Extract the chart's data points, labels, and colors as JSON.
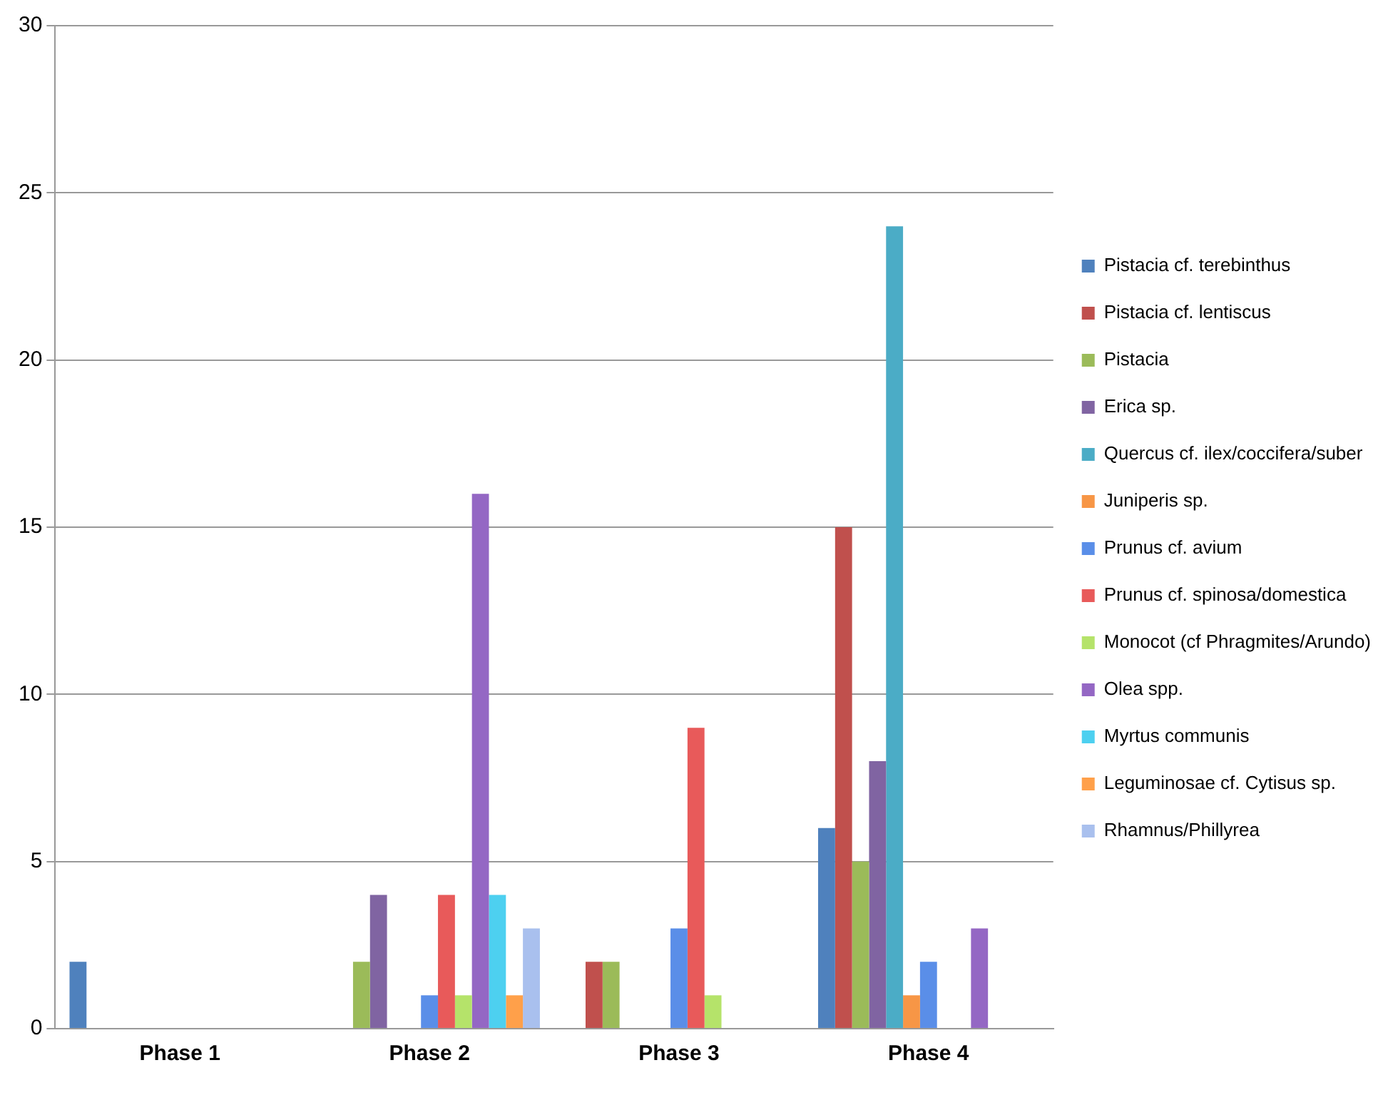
{
  "chart_data": {
    "type": "bar",
    "categories": [
      "Phase 1",
      "Phase 2",
      "Phase 3",
      "Phase 4"
    ],
    "series": [
      {
        "name": "Pistacia cf. terebinthus",
        "color": "#4f81bd",
        "values": [
          2,
          0,
          0,
          6
        ]
      },
      {
        "name": "Pistacia cf. lentiscus",
        "color": "#c0504d",
        "values": [
          0,
          0,
          2,
          15
        ]
      },
      {
        "name": "Pistacia",
        "color": "#9bbb59",
        "values": [
          0,
          2,
          2,
          5
        ]
      },
      {
        "name": "Erica sp.",
        "color": "#8064a2",
        "values": [
          0,
          4,
          0,
          8
        ]
      },
      {
        "name": "Quercus cf. ilex/coccifera/suber",
        "color": "#4bacc6",
        "values": [
          0,
          0,
          0,
          24
        ]
      },
      {
        "name": "Juniperis sp.",
        "color": "#f79646",
        "values": [
          0,
          0,
          0,
          1
        ]
      },
      {
        "name": "Prunus cf. avium",
        "color": "#5a8ee8",
        "values": [
          0,
          1,
          3,
          2
        ]
      },
      {
        "name": "Prunus cf. spinosa/domestica",
        "color": "#e85a5a",
        "values": [
          0,
          4,
          9,
          0
        ]
      },
      {
        "name": "Monocot (cf Phragmites/Arundo)",
        "color": "#b5e36a",
        "values": [
          0,
          1,
          1,
          0
        ]
      },
      {
        "name": "Olea spp.",
        "color": "#9467c4",
        "values": [
          0,
          16,
          0,
          3
        ]
      },
      {
        "name": "Myrtus communis",
        "color": "#4dd0f0",
        "values": [
          0,
          4,
          0,
          0
        ]
      },
      {
        "name": "Leguminosae cf. Cytisus sp.",
        "color": "#ffa04a",
        "values": [
          0,
          1,
          0,
          0
        ]
      },
      {
        "name": "Rhamnus/Phillyrea",
        "color": "#a9c0ee",
        "values": [
          0,
          3,
          0,
          0
        ]
      }
    ],
    "ylim": [
      0,
      30
    ],
    "yticks": [
      0,
      5,
      10,
      15,
      20,
      25,
      30
    ],
    "grid": "y",
    "legend": "right"
  }
}
